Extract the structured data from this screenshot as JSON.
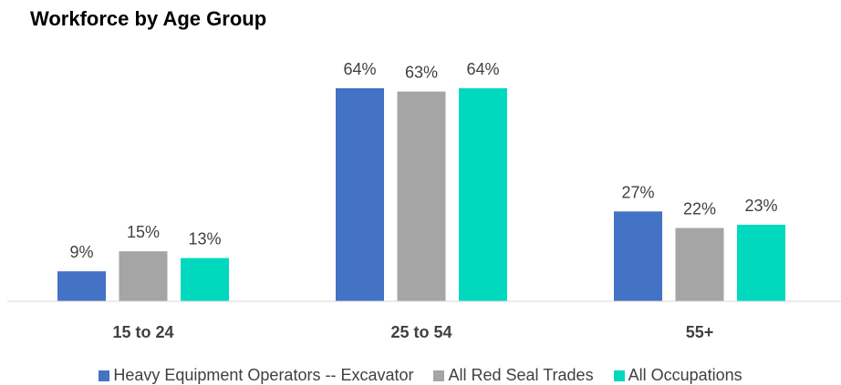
{
  "chart_data": {
    "type": "bar",
    "title": "Workforce by Age Group",
    "xlabel": "",
    "ylabel": "",
    "ylim": [
      0,
      70
    ],
    "grid": false,
    "legend_position": "bottom",
    "categories": [
      "15 to 24",
      "25 to 54",
      "55+"
    ],
    "series": [
      {
        "name": "Heavy Equipment Operators -- Excavator",
        "color": "#4472C4",
        "values": [
          9,
          64,
          27
        ],
        "labels": [
          "9%",
          "64%",
          "27%"
        ]
      },
      {
        "name": "All Red Seal Trades",
        "color": "#A5A5A5",
        "values": [
          15,
          63,
          22
        ],
        "labels": [
          "15%",
          "63%",
          "22%"
        ]
      },
      {
        "name": "All Occupations",
        "color": "#00D9BE",
        "values": [
          13,
          64,
          23
        ],
        "labels": [
          "13%",
          "64%",
          "23%"
        ]
      }
    ]
  }
}
